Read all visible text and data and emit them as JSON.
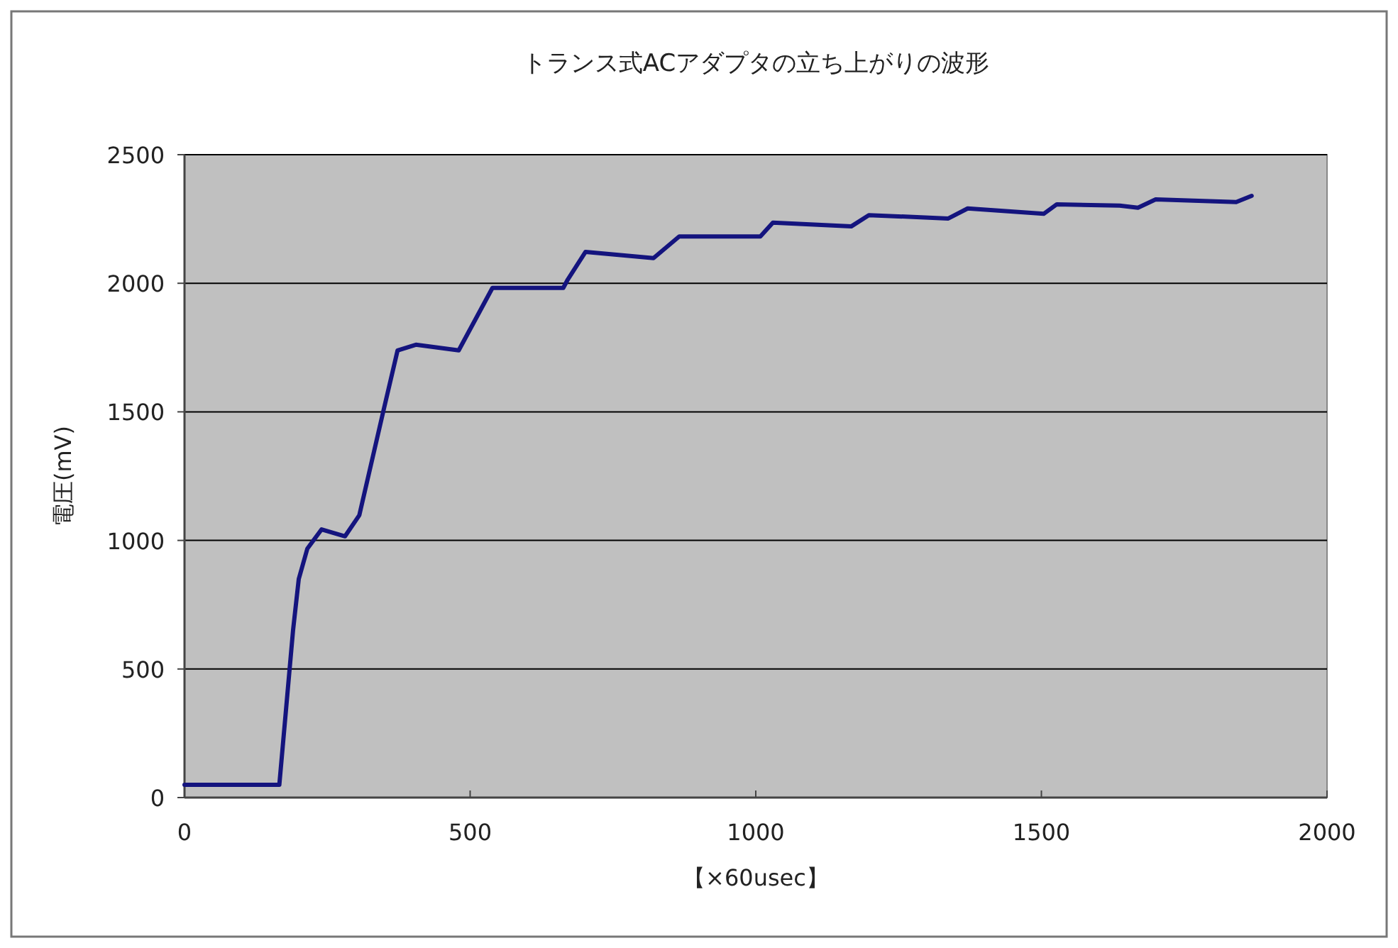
{
  "chart_data": {
    "type": "line",
    "title": "トランス式ACアダプタの立ち上がりの波形",
    "xlabel": "【×60usec】",
    "ylabel": "電圧(mV)",
    "x": [
      0,
      166,
      172,
      180,
      190,
      200,
      215,
      240,
      281,
      306,
      348,
      373,
      405,
      480,
      539,
      663,
      671,
      702,
      821,
      866,
      1008,
      1030,
      1167,
      1198,
      1337,
      1371,
      1504,
      1527,
      1637,
      1669,
      1700,
      1841,
      1868
    ],
    "series": [
      {
        "color": "#14147e",
        "values": [
          50,
          50,
          200,
          400,
          650,
          850,
          968,
          1043,
          1016,
          1098,
          1502,
          1739,
          1761,
          1739,
          1982,
          1982,
          2015,
          2122,
          2098,
          2182,
          2182,
          2236,
          2221,
          2265,
          2252,
          2291,
          2270,
          2307,
          2302,
          2294,
          2326,
          2316,
          2340
        ]
      }
    ],
    "xlim": [
      0,
      2000
    ],
    "ylim": [
      0,
      2500
    ],
    "xticks": [
      0,
      500,
      1000,
      1500,
      2000
    ],
    "yticks": [
      0,
      500,
      1000,
      1500,
      2000,
      2500
    ],
    "grid": "y"
  }
}
